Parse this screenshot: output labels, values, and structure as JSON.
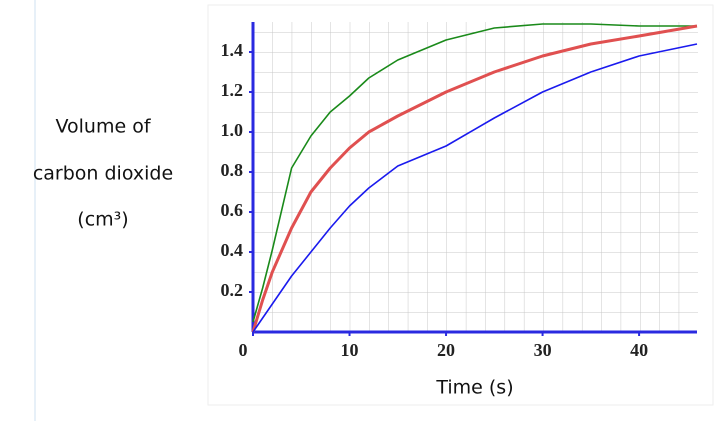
{
  "chart_data": {
    "type": "line",
    "x_label": "Time (s)",
    "y_label": [
      "Volume of",
      "carbon dioxide",
      "(cm³)"
    ],
    "x": [
      0,
      1,
      2,
      4,
      6,
      8,
      10,
      12,
      15,
      20,
      25,
      30,
      35,
      40,
      46
    ],
    "series": [
      {
        "color": "#1a8a1a",
        "values": [
          0.05,
          0.22,
          0.41,
          0.82,
          0.98,
          1.1,
          1.18,
          1.27,
          1.36,
          1.46,
          1.52,
          1.54,
          1.54,
          1.53,
          1.53
        ]
      },
      {
        "color": "#e05050",
        "values": [
          0,
          0.16,
          0.3,
          0.52,
          0.7,
          0.82,
          0.92,
          1.0,
          1.08,
          1.2,
          1.3,
          1.38,
          1.44,
          1.48,
          1.53
        ]
      },
      {
        "color": "#1a1aee",
        "values": [
          0,
          0.07,
          0.14,
          0.28,
          0.4,
          0.52,
          0.63,
          0.72,
          0.83,
          0.93,
          1.07,
          1.2,
          1.3,
          1.38,
          1.44
        ]
      }
    ],
    "xlim": [
      0,
      46
    ],
    "ylim": [
      0,
      1.55
    ],
    "xticks": [
      0,
      10,
      20,
      30,
      40
    ],
    "yticks": [
      0.2,
      0.4,
      0.6,
      0.8,
      {
        "value": 1,
        "label": "1.0"
      },
      1.2,
      1.4
    ]
  }
}
